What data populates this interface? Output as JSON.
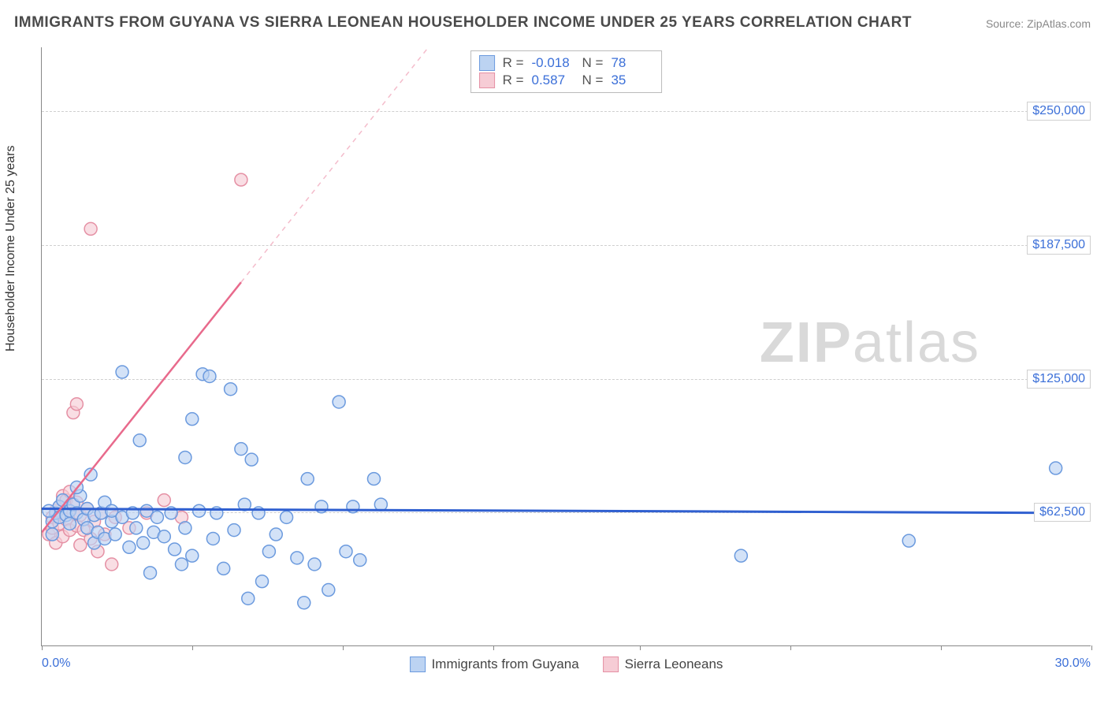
{
  "title": "IMMIGRANTS FROM GUYANA VS SIERRA LEONEAN HOUSEHOLDER INCOME UNDER 25 YEARS CORRELATION CHART",
  "source": "Source: ZipAtlas.com",
  "watermark": {
    "bold": "ZIP",
    "rest": "atlas"
  },
  "yaxis_title": "Householder Income Under 25 years",
  "chart": {
    "type": "scatter-correlation",
    "background_color": "#ffffff",
    "grid_color": "#cfcfcf",
    "axis_color": "#888888",
    "xlim": [
      0.0,
      30.0
    ],
    "ylim": [
      0,
      280000
    ],
    "x_tick_positions": [
      0,
      4.3,
      8.6,
      12.9,
      17.1,
      21.4,
      25.7,
      30.0
    ],
    "x_tick_labels_shown": {
      "min": "0.0%",
      "max": "30.0%"
    },
    "y_gridlines": [
      62500,
      125000,
      187500,
      250000
    ],
    "y_tick_labels": [
      "$62,500",
      "$125,000",
      "$187,500",
      "$250,000"
    ],
    "marker_radius": 8,
    "marker_stroke_width": 1.5,
    "series": [
      {
        "id": "guyana",
        "label": "Immigrants from Guyana",
        "color_fill": "#bcd3f2",
        "color_stroke": "#6b9ade",
        "trend_color": "#2f5fd0",
        "trend_width": 3,
        "trend_dashed_color": "#9db9e8",
        "R": "-0.018",
        "N": "78",
        "trendline": {
          "x1": 0.0,
          "y1": 64000,
          "x2": 30.0,
          "y2": 62000
        },
        "points": [
          {
            "x": 0.3,
            "y": 58000
          },
          {
            "x": 0.4,
            "y": 62000
          },
          {
            "x": 0.5,
            "y": 65000
          },
          {
            "x": 0.5,
            "y": 60000
          },
          {
            "x": 0.6,
            "y": 68000
          },
          {
            "x": 0.7,
            "y": 61000
          },
          {
            "x": 0.8,
            "y": 63000
          },
          {
            "x": 0.8,
            "y": 57000
          },
          {
            "x": 0.9,
            "y": 66000
          },
          {
            "x": 1.0,
            "y": 62000
          },
          {
            "x": 1.1,
            "y": 70000
          },
          {
            "x": 1.2,
            "y": 59000
          },
          {
            "x": 1.3,
            "y": 64000
          },
          {
            "x": 1.3,
            "y": 55000
          },
          {
            "x": 1.5,
            "y": 61000
          },
          {
            "x": 1.5,
            "y": 48000
          },
          {
            "x": 1.6,
            "y": 53000
          },
          {
            "x": 1.7,
            "y": 62000
          },
          {
            "x": 1.8,
            "y": 67000
          },
          {
            "x": 1.8,
            "y": 50000
          },
          {
            "x": 2.0,
            "y": 58000
          },
          {
            "x": 2.0,
            "y": 63000
          },
          {
            "x": 2.1,
            "y": 52000
          },
          {
            "x": 2.3,
            "y": 60000
          },
          {
            "x": 2.3,
            "y": 128000
          },
          {
            "x": 2.5,
            "y": 46000
          },
          {
            "x": 2.6,
            "y": 62000
          },
          {
            "x": 2.7,
            "y": 55000
          },
          {
            "x": 2.8,
            "y": 96000
          },
          {
            "x": 2.9,
            "y": 48000
          },
          {
            "x": 3.0,
            "y": 63000
          },
          {
            "x": 3.1,
            "y": 34000
          },
          {
            "x": 3.2,
            "y": 53000
          },
          {
            "x": 3.3,
            "y": 60000
          },
          {
            "x": 3.5,
            "y": 51000
          },
          {
            "x": 3.7,
            "y": 62000
          },
          {
            "x": 3.8,
            "y": 45000
          },
          {
            "x": 4.0,
            "y": 38000
          },
          {
            "x": 4.1,
            "y": 55000
          },
          {
            "x": 4.1,
            "y": 88000
          },
          {
            "x": 4.3,
            "y": 106000
          },
          {
            "x": 4.3,
            "y": 42000
          },
          {
            "x": 4.5,
            "y": 63000
          },
          {
            "x": 4.6,
            "y": 127000
          },
          {
            "x": 4.8,
            "y": 126000
          },
          {
            "x": 4.9,
            "y": 50000
          },
          {
            "x": 5.0,
            "y": 62000
          },
          {
            "x": 5.2,
            "y": 36000
          },
          {
            "x": 5.4,
            "y": 120000
          },
          {
            "x": 5.5,
            "y": 54000
          },
          {
            "x": 5.7,
            "y": 92000
          },
          {
            "x": 5.8,
            "y": 66000
          },
          {
            "x": 5.9,
            "y": 22000
          },
          {
            "x": 6.0,
            "y": 87000
          },
          {
            "x": 6.2,
            "y": 62000
          },
          {
            "x": 6.3,
            "y": 30000
          },
          {
            "x": 6.5,
            "y": 44000
          },
          {
            "x": 6.7,
            "y": 52000
          },
          {
            "x": 7.0,
            "y": 60000
          },
          {
            "x": 7.3,
            "y": 41000
          },
          {
            "x": 7.5,
            "y": 20000
          },
          {
            "x": 7.6,
            "y": 78000
          },
          {
            "x": 7.8,
            "y": 38000
          },
          {
            "x": 8.0,
            "y": 65000
          },
          {
            "x": 8.2,
            "y": 26000
          },
          {
            "x": 8.5,
            "y": 114000
          },
          {
            "x": 8.7,
            "y": 44000
          },
          {
            "x": 8.9,
            "y": 65000
          },
          {
            "x": 9.1,
            "y": 40000
          },
          {
            "x": 9.5,
            "y": 78000
          },
          {
            "x": 9.7,
            "y": 66000
          },
          {
            "x": 20.0,
            "y": 42000
          },
          {
            "x": 24.8,
            "y": 49000
          },
          {
            "x": 29.0,
            "y": 83000
          },
          {
            "x": 1.0,
            "y": 74000
          },
          {
            "x": 1.4,
            "y": 80000
          },
          {
            "x": 0.3,
            "y": 52000
          },
          {
            "x": 0.2,
            "y": 63000
          }
        ]
      },
      {
        "id": "sierra",
        "label": "Sierra Leoneans",
        "color_fill": "#f6ccd5",
        "color_stroke": "#e590a4",
        "trend_color": "#e86a8c",
        "trend_width": 2.5,
        "trend_dashed_color": "#f4bccb",
        "R": "0.587",
        "N": "35",
        "trendline_solid": {
          "x1": 0.0,
          "y1": 53000,
          "x2": 5.7,
          "y2": 170000
        },
        "trendline_dashed": {
          "x1": 5.7,
          "y1": 170000,
          "x2": 11.4,
          "y2": 287000
        },
        "points": [
          {
            "x": 0.2,
            "y": 52000
          },
          {
            "x": 0.3,
            "y": 55000
          },
          {
            "x": 0.3,
            "y": 60000
          },
          {
            "x": 0.4,
            "y": 48000
          },
          {
            "x": 0.4,
            "y": 63000
          },
          {
            "x": 0.5,
            "y": 57000
          },
          {
            "x": 0.5,
            "y": 65000
          },
          {
            "x": 0.6,
            "y": 51000
          },
          {
            "x": 0.6,
            "y": 70000
          },
          {
            "x": 0.7,
            "y": 59000
          },
          {
            "x": 0.7,
            "y": 68000
          },
          {
            "x": 0.8,
            "y": 54000
          },
          {
            "x": 0.8,
            "y": 72000
          },
          {
            "x": 0.9,
            "y": 62000
          },
          {
            "x": 0.9,
            "y": 109000
          },
          {
            "x": 1.0,
            "y": 56000
          },
          {
            "x": 1.0,
            "y": 67000
          },
          {
            "x": 1.0,
            "y": 113000
          },
          {
            "x": 1.1,
            "y": 47000
          },
          {
            "x": 1.1,
            "y": 61000
          },
          {
            "x": 1.2,
            "y": 54000
          },
          {
            "x": 1.3,
            "y": 64000
          },
          {
            "x": 1.4,
            "y": 50000
          },
          {
            "x": 1.5,
            "y": 58000
          },
          {
            "x": 1.6,
            "y": 44000
          },
          {
            "x": 1.7,
            "y": 62000
          },
          {
            "x": 1.8,
            "y": 52000
          },
          {
            "x": 1.4,
            "y": 195000
          },
          {
            "x": 2.0,
            "y": 38000
          },
          {
            "x": 2.1,
            "y": 60000
          },
          {
            "x": 2.5,
            "y": 55000
          },
          {
            "x": 3.0,
            "y": 62000
          },
          {
            "x": 3.5,
            "y": 68000
          },
          {
            "x": 4.0,
            "y": 60000
          },
          {
            "x": 5.7,
            "y": 218000
          }
        ]
      }
    ]
  },
  "legend_stats": {
    "rows": [
      {
        "swatch_fill": "#bcd3f2",
        "swatch_stroke": "#6b9ade",
        "r_label": "R =",
        "r_val": "-0.018",
        "n_label": "N =",
        "n_val": "78"
      },
      {
        "swatch_fill": "#f6ccd5",
        "swatch_stroke": "#e590a4",
        "r_label": "R =",
        "r_val": "0.587",
        "n_label": "N =",
        "n_val": "35"
      }
    ]
  }
}
